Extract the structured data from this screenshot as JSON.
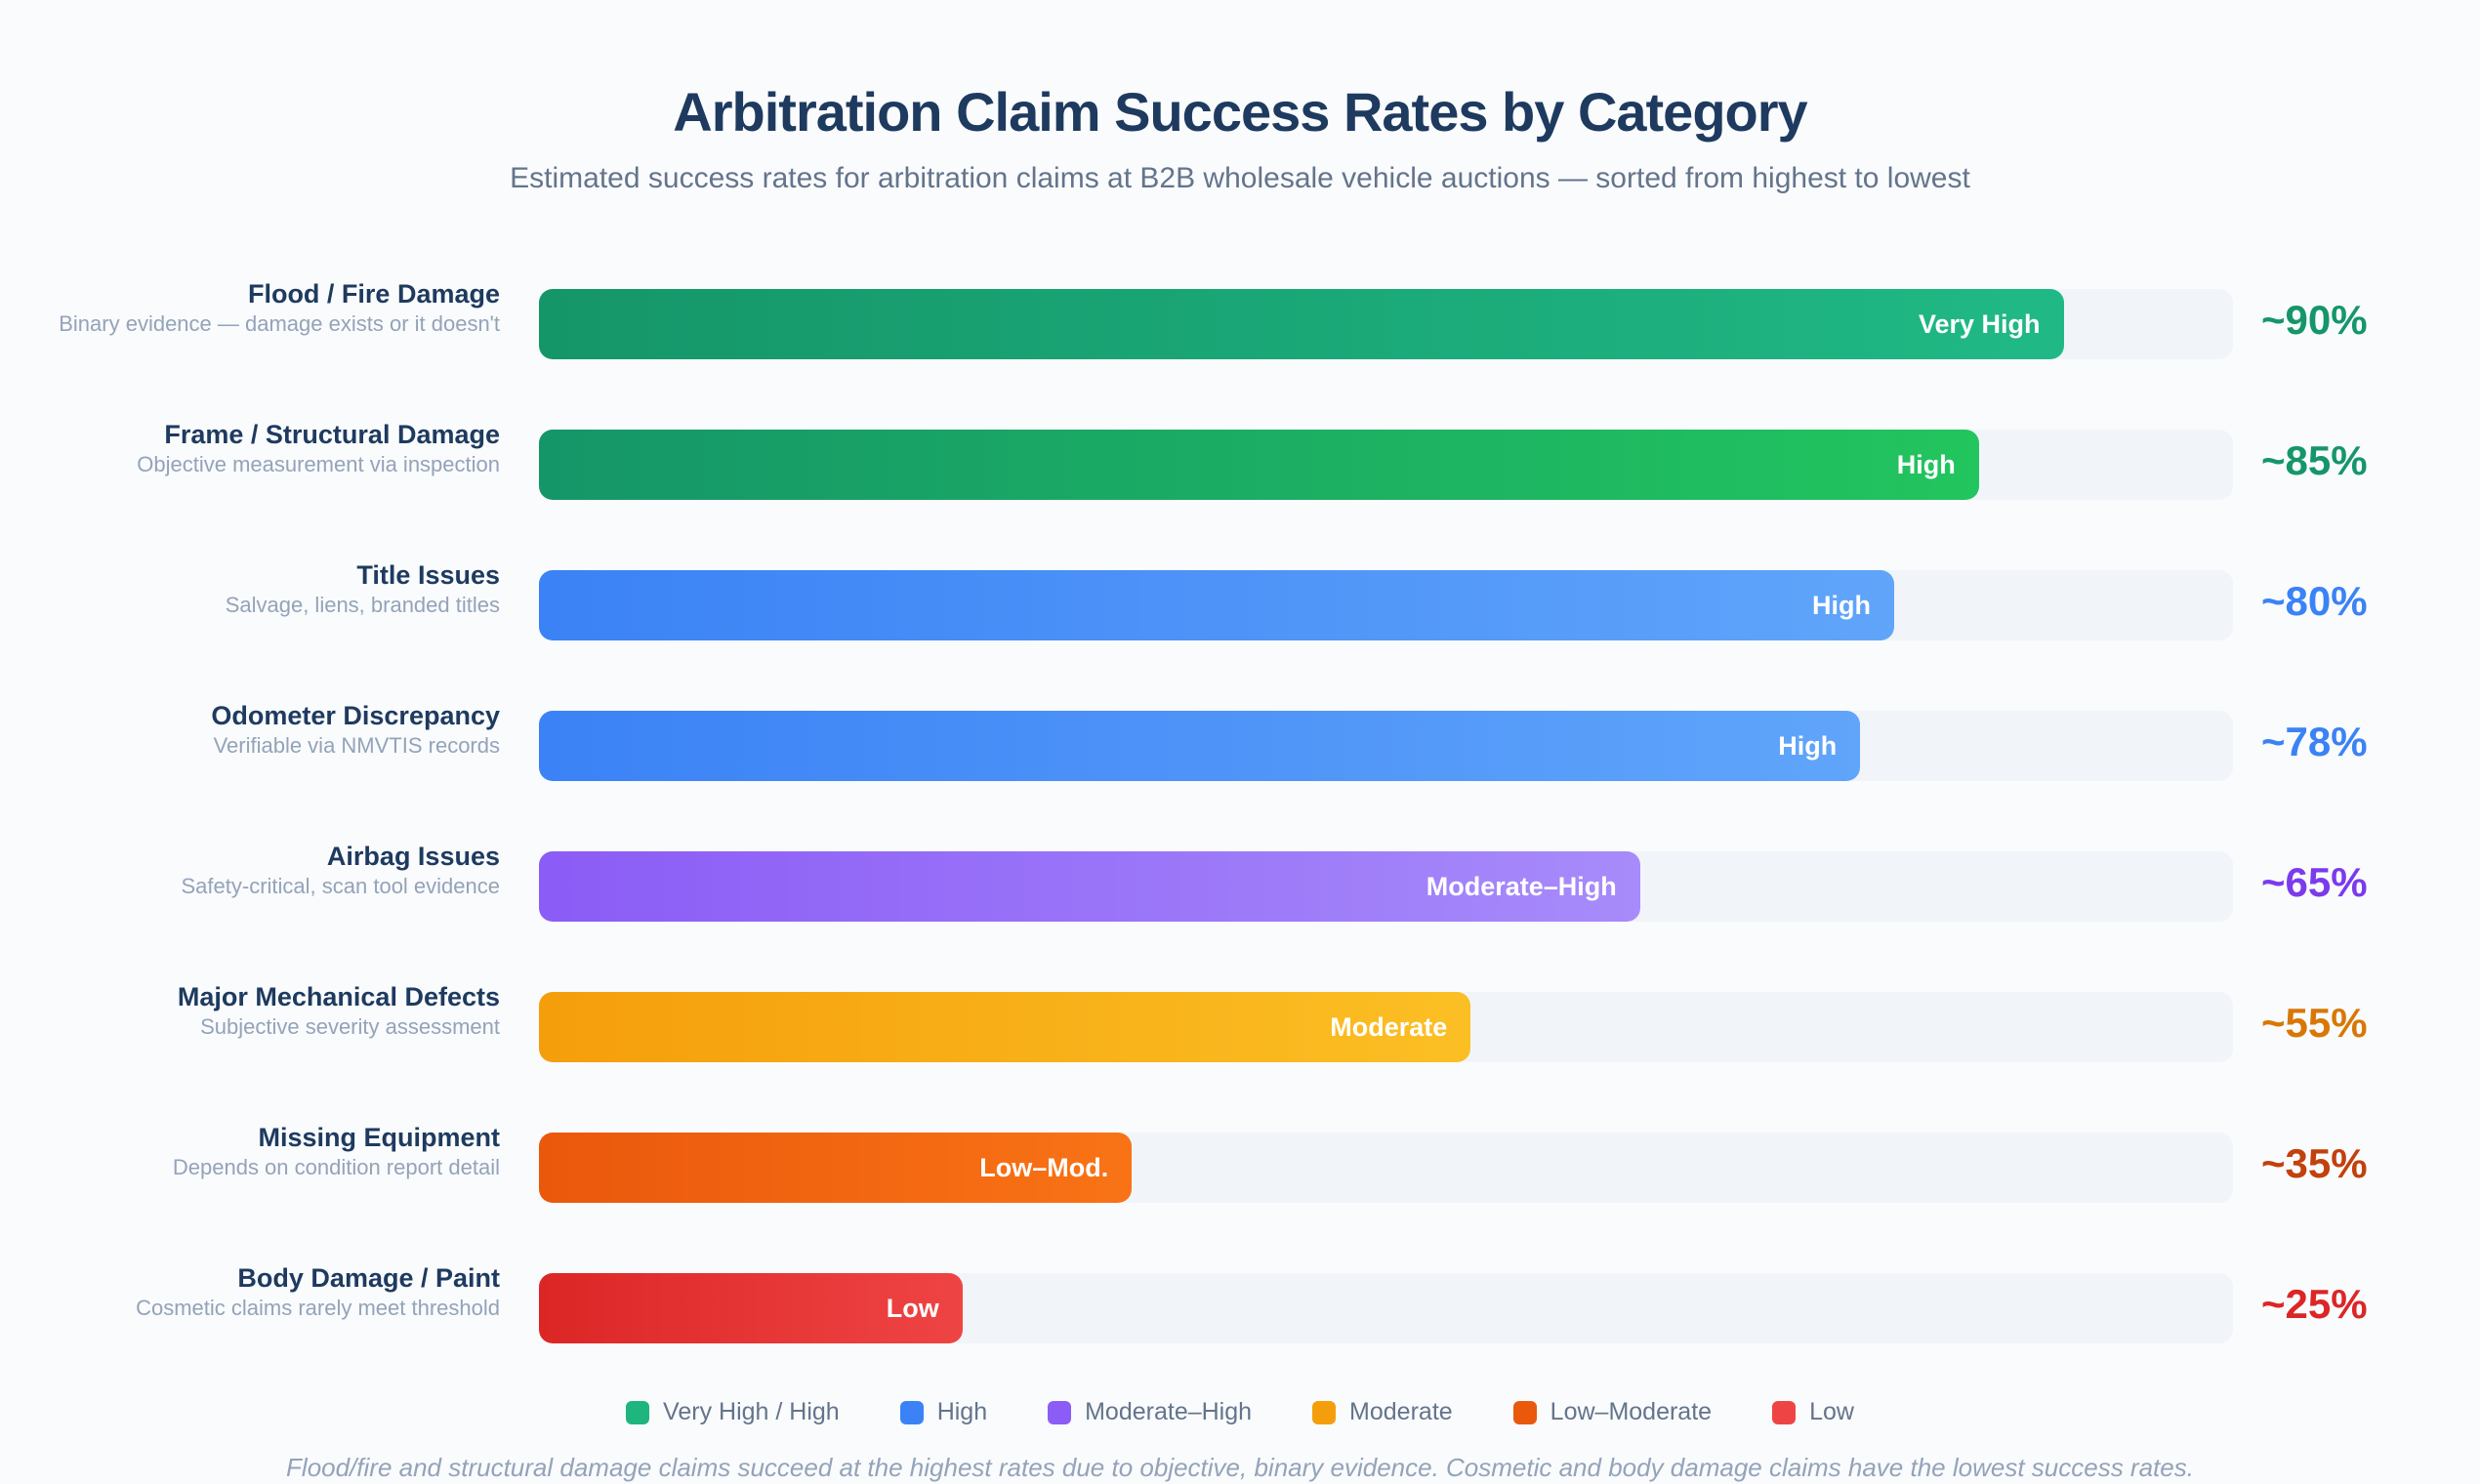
{
  "chart_data": {
    "type": "bar",
    "orientation": "horizontal",
    "title": "Arbitration Claim Success Rates by Category",
    "subtitle": "Estimated success rates for arbitration claims at B2B wholesale vehicle auctions — sorted from highest to lowest",
    "xlim": [
      0,
      100
    ],
    "grid": false,
    "legend_placement": "bottom",
    "rows": [
      {
        "category": "Flood / Fire Damage",
        "description": "Binary evidence — damage exists or it doesn't",
        "value": 90,
        "value_label": "~90%",
        "level": "Very High",
        "color_from": "#159669",
        "color_to": "#20b985",
        "text_color": "#15966a"
      },
      {
        "category": "Frame / Structural Damage",
        "description": "Objective measurement via inspection",
        "value": 85,
        "value_label": "~85%",
        "level": "High",
        "color_from": "#159669",
        "color_to": "#22c55e",
        "text_color": "#15966a"
      },
      {
        "category": "Title Issues",
        "description": "Salvage, liens, branded titles",
        "value": 80,
        "value_label": "~80%",
        "level": "High",
        "color_from": "#3b82f6",
        "color_to": "#60a5fa",
        "text_color": "#3b82f6"
      },
      {
        "category": "Odometer Discrepancy",
        "description": "Verifiable via NMVTIS records",
        "value": 78,
        "value_label": "~78%",
        "level": "High",
        "color_from": "#3b82f6",
        "color_to": "#60a5fa",
        "text_color": "#3b82f6"
      },
      {
        "category": "Airbag Issues",
        "description": "Safety-critical, scan tool evidence",
        "value": 65,
        "value_label": "~65%",
        "level": "Moderate–High",
        "color_from": "#8b5cf6",
        "color_to": "#a78bfa",
        "text_color": "#7c3aed"
      },
      {
        "category": "Major Mechanical Defects",
        "description": "Subjective severity assessment",
        "value": 55,
        "value_label": "~55%",
        "level": "Moderate",
        "color_from": "#f59e0b",
        "color_to": "#fbbf24",
        "text_color": "#d97706"
      },
      {
        "category": "Missing Equipment",
        "description": "Depends on condition report detail",
        "value": 35,
        "value_label": "~35%",
        "level": "Low–Mod.",
        "color_from": "#ea580c",
        "color_to": "#f97316",
        "text_color": "#c2410c"
      },
      {
        "category": "Body Damage / Paint",
        "description": "Cosmetic claims rarely meet threshold",
        "value": 25,
        "value_label": "~25%",
        "level": "Low",
        "color_from": "#dc2626",
        "color_to": "#ef4444",
        "text_color": "#dc2626"
      }
    ],
    "legend": [
      {
        "label": "Very High / High",
        "color": "#1fb57f"
      },
      {
        "label": "High",
        "color": "#3b82f6"
      },
      {
        "label": "Moderate–High",
        "color": "#8b5cf6"
      },
      {
        "label": "Moderate",
        "color": "#f59e0b"
      },
      {
        "label": "Low–Moderate",
        "color": "#ea580c"
      },
      {
        "label": "Low",
        "color": "#ef4444"
      }
    ],
    "footnote": "Flood/fire and structural damage claims succeed at the highest rates due to objective, binary evidence. Cosmetic and body damage claims have the lowest success rates."
  }
}
